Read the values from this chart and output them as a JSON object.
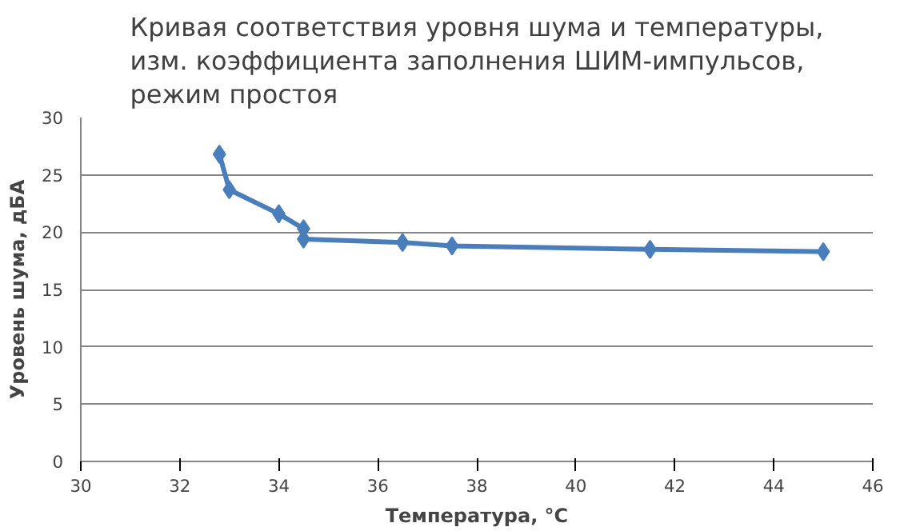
{
  "chart_data": {
    "type": "line",
    "title": "Кривая соответствия уровня шума и температуры,\nизм. коэффициента заполнения ШИМ-импульсов,\nрежим простоя",
    "xlabel": "Температура, °С",
    "ylabel": "Уровень шума, дБА",
    "series": [
      {
        "color": "#4a7ebb",
        "x": [
          32.8,
          33.0,
          34.0,
          34.5,
          34.5,
          36.5,
          37.5,
          41.5,
          45.0
        ],
        "values": [
          26.8,
          23.7,
          21.6,
          20.3,
          19.4,
          19.1,
          18.8,
          18.5,
          18.3
        ]
      }
    ],
    "xlim": [
      30,
      46
    ],
    "xticks": [
      30,
      32,
      34,
      36,
      38,
      40,
      42,
      44,
      46
    ],
    "ylim": [
      0,
      30
    ],
    "yticks": [
      0,
      5,
      10,
      15,
      20,
      25,
      30
    ],
    "grid": "y",
    "marker": "diamond",
    "line_style": "solid"
  }
}
